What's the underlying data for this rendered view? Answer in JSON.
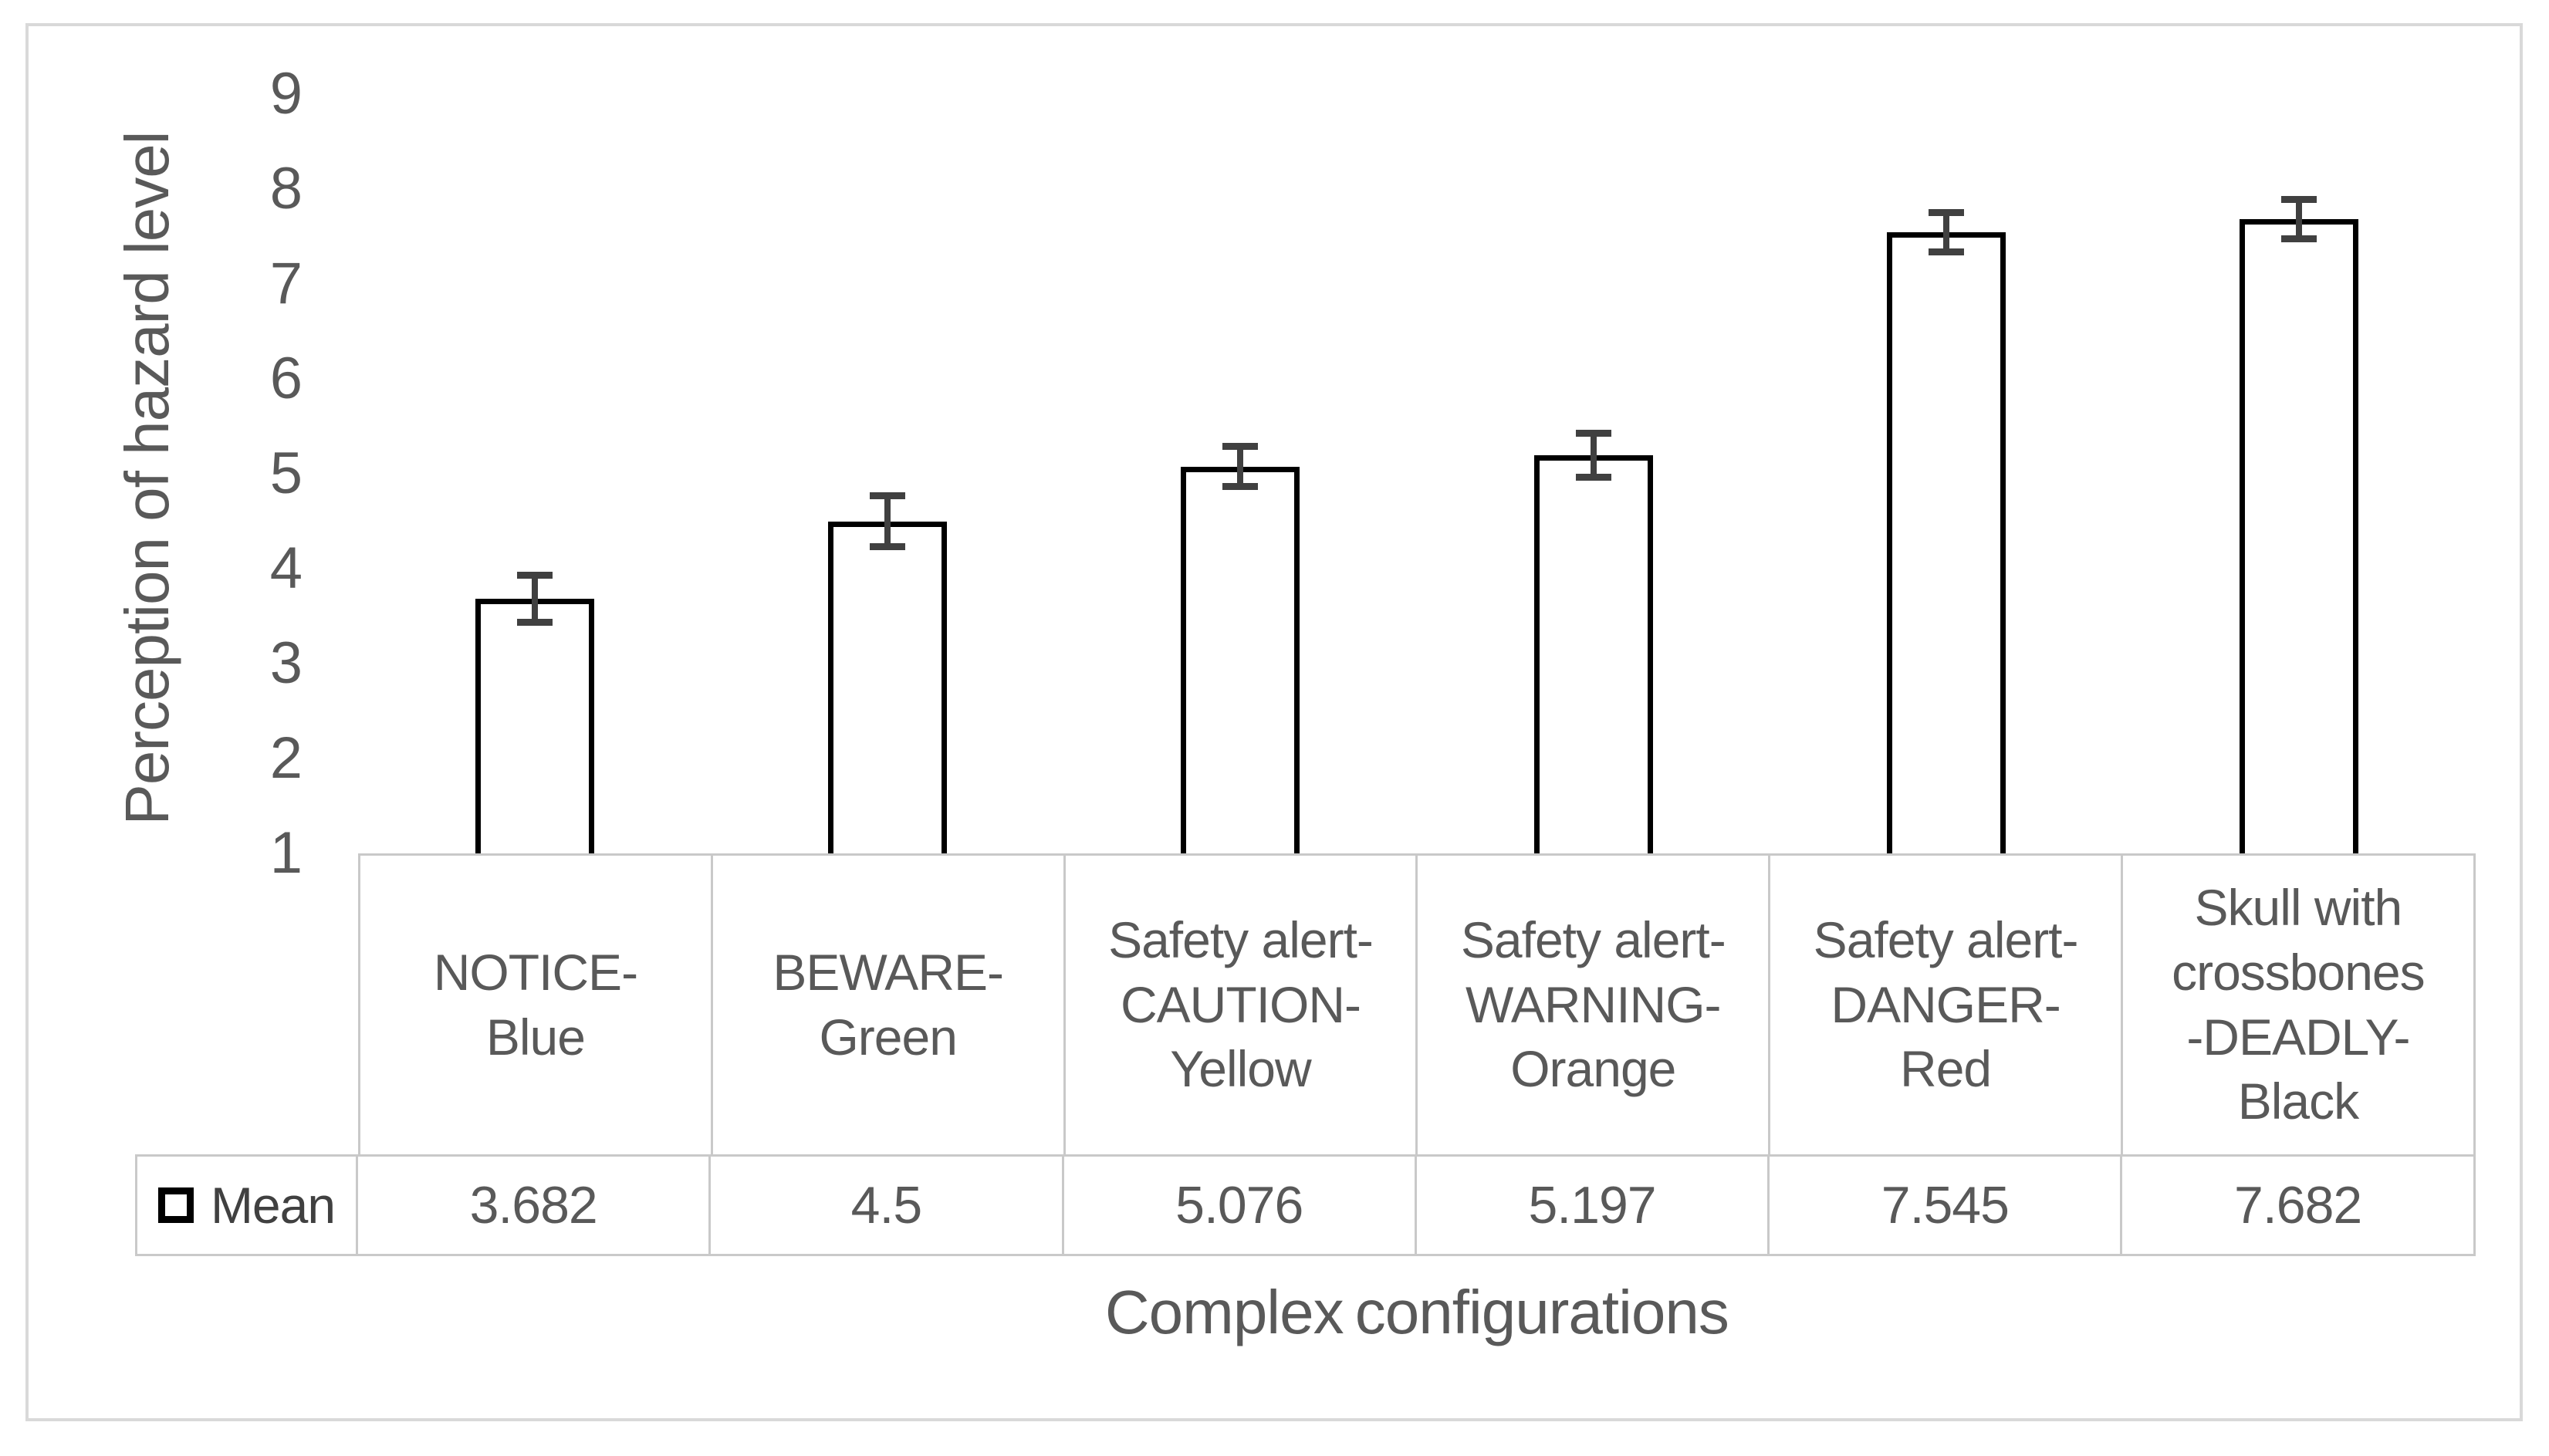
{
  "chart_data": {
    "type": "bar",
    "title": "",
    "xlabel": "Complex configurations",
    "ylabel": "Perception of hazard level",
    "ylim": [
      1,
      9
    ],
    "yticks": [
      "1",
      "2",
      "3",
      "4",
      "5",
      "6",
      "7",
      "8",
      "9"
    ],
    "grid": false,
    "legend": {
      "series_label": "Mean",
      "position": "table-left",
      "swatch": "white-square-black-border"
    },
    "categories": [
      "NOTICE-Blue",
      "BEWARE-Green",
      "Safety alert-CAUTION-Yellow",
      "Safety alert-WARNING-Orange",
      "Safety alert-DANGER-Red",
      "Skull with crossbones-DEADLY-Black"
    ],
    "category_display": [
      "NOTICE-\nBlue",
      "BEWARE-\nGreen",
      "Safety alert-\nCAUTION-\nYellow",
      "Safety alert-\nWARNING-\nOrange",
      "Safety alert-\nDANGER-\nRed",
      "Skull with\ncrossbones\n-DEADLY-\nBlack"
    ],
    "series": [
      {
        "name": "Mean",
        "values": [
          3.682,
          4.5,
          5.076,
          5.197,
          7.545,
          7.682
        ]
      }
    ],
    "value_labels": [
      "3.682",
      "4.5",
      "5.076",
      "5.197",
      "7.545",
      "7.682"
    ],
    "error_bars": {
      "type": "plus_minus",
      "values": [
        0.25,
        0.27,
        0.21,
        0.23,
        0.21,
        0.21
      ]
    },
    "colors": {
      "bar_fill": "#ffffff",
      "bar_border": "#000000",
      "error_bar": "#404040",
      "text": "#595959",
      "table_border": "#c9c9c9",
      "frame_border": "#d9d9d9",
      "background": "#ffffff"
    }
  }
}
